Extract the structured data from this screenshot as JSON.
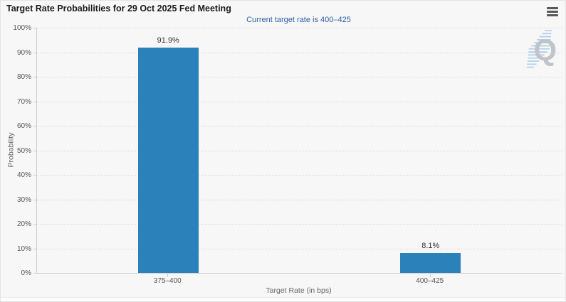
{
  "chart_data": {
    "type": "bar",
    "title": "Target Rate Probabilities for 29 Oct 2025 Fed Meeting",
    "subtitle": "Current target rate is 400–425",
    "categories": [
      "375–400",
      "400–425"
    ],
    "values": [
      91.9,
      8.1
    ],
    "value_labels": [
      "91.9%",
      "8.1%"
    ],
    "xlabel": "Target Rate (in bps)",
    "ylabel": "Probability",
    "ylim": [
      0,
      100
    ],
    "ytick_step": 10,
    "ytick_suffix": "%",
    "grid": "horizontal-dotted",
    "legend": "none"
  },
  "colors": {
    "bar": "#2b81ba",
    "background": "#f7f7f7",
    "subtitle_text": "#2f5fa5",
    "gridline": "#d9d9d9",
    "axis_line": "#cccccc",
    "watermark_gray": "#c1c4c7",
    "watermark_blue": "#a3c9e8"
  },
  "ui": {
    "menu_icon": "hamburger-menu-icon",
    "watermark_letter": "Q",
    "watermark_icon": "lightning-slash-icon"
  }
}
